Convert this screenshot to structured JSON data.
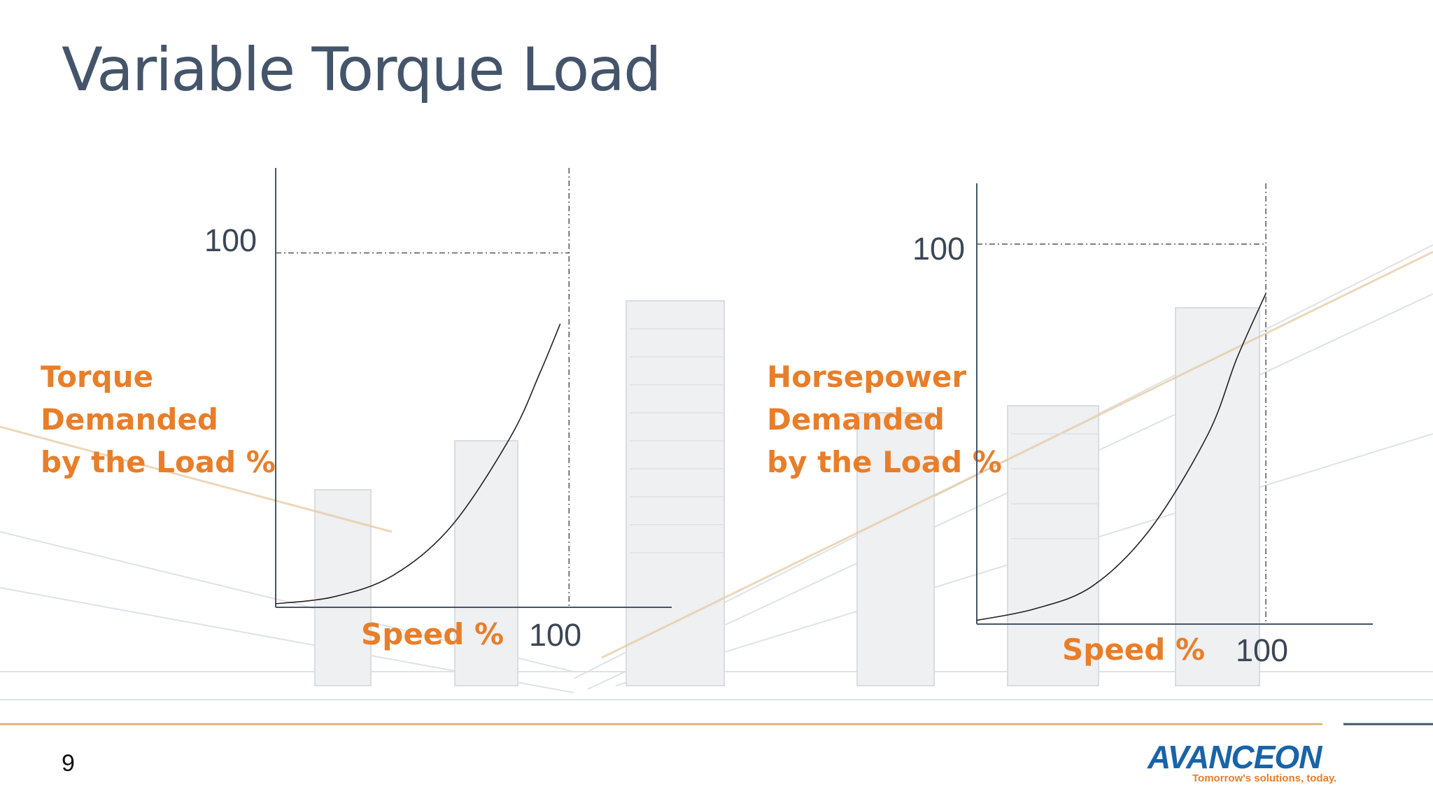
{
  "slide": {
    "title": "Variable Torque Load",
    "page_number": "9"
  },
  "logo": {
    "name": "AVANCEON",
    "tagline": "Tomorrow's solutions, today."
  },
  "colors": {
    "title": "#44546a",
    "accent": "#e87e2a",
    "axis": "#44546a",
    "logo": "#1a63a8"
  },
  "chart_data": [
    {
      "type": "line",
      "ylabel": [
        "Torque",
        "Demanded",
        "by the Load %"
      ],
      "xlabel": "Speed %",
      "x_tick": "100",
      "y_tick": "100",
      "xlim": [
        0,
        135
      ],
      "ylim": [
        0,
        124
      ],
      "reference_x": 100,
      "reference_y": 100,
      "series": [
        {
          "x": [
            0,
            20,
            40,
            60,
            80,
            90,
            97
          ],
          "y": [
            1,
            3,
            9,
            23,
            48,
            66,
            80
          ]
        }
      ]
    },
    {
      "type": "line",
      "ylabel": [
        "Horsepower",
        "Demanded",
        "by the Load %"
      ],
      "xlabel": "Speed %",
      "x_tick": "100",
      "y_tick": "100",
      "xlim": [
        0,
        137
      ],
      "ylim": [
        0,
        116
      ],
      "reference_x": 100,
      "reference_y": 100,
      "series": [
        {
          "x": [
            0,
            20,
            40,
            60,
            80,
            90,
            100
          ],
          "y": [
            1,
            4,
            10,
            25,
            50,
            70,
            87
          ]
        }
      ]
    }
  ]
}
